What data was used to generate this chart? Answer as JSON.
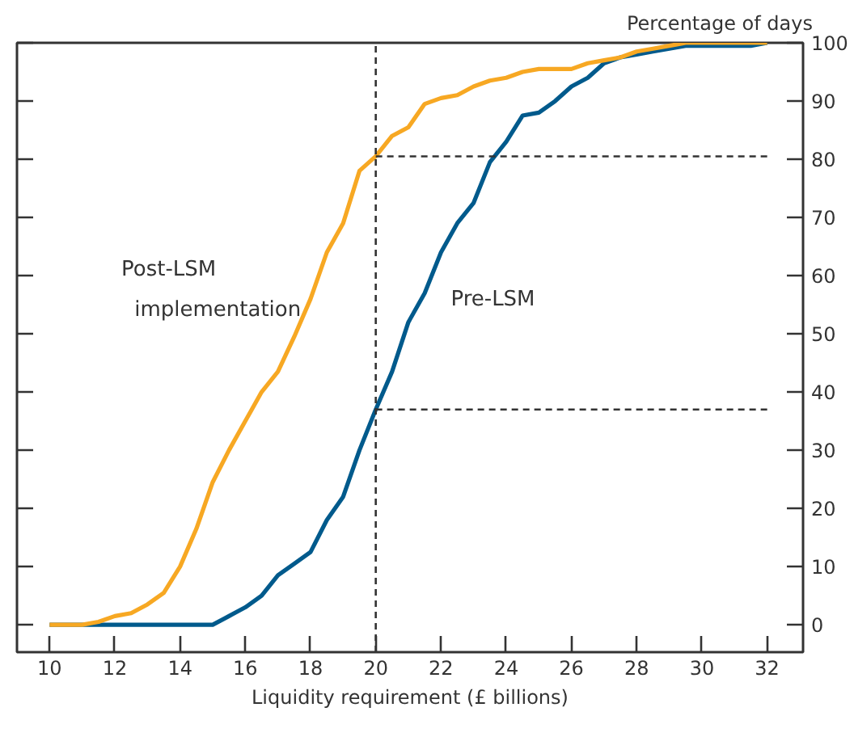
{
  "chart_data": {
    "type": "line",
    "xlabel": "Liquidity requirement (£ billions)",
    "ylabel": "Percentage of days",
    "x": [
      10,
      10.5,
      11,
      11.5,
      12,
      12.5,
      13,
      13.5,
      14,
      14.5,
      15,
      15.5,
      16,
      16.5,
      17,
      17.5,
      18,
      18.5,
      19,
      19.5,
      20,
      20.5,
      21,
      21.5,
      22,
      22.5,
      23,
      23.5,
      24,
      24.5,
      25,
      25.5,
      26,
      26.5,
      27,
      27.5,
      28,
      28.5,
      29,
      29.5,
      30,
      30.5,
      31,
      31.5,
      32
    ],
    "series": [
      {
        "name": "Post-LSM implementation",
        "color": "#f7a823",
        "values": [
          0,
          0,
          0,
          0.5,
          1.5,
          2,
          3.5,
          5.5,
          10,
          16.5,
          24.5,
          30,
          35,
          40,
          43.5,
          49.5,
          56,
          64,
          69,
          78,
          80.5,
          84,
          85.5,
          89.5,
          90.5,
          91,
          92.5,
          93.5,
          94,
          95,
          95.5,
          95.5,
          95.5,
          96.5,
          97,
          97.5,
          98.5,
          99,
          99.5,
          100,
          100,
          100,
          100,
          100,
          100
        ]
      },
      {
        "name": "Pre-LSM",
        "color": "#005a8c",
        "values": [
          0,
          0,
          0,
          0,
          0,
          0,
          0,
          0,
          0,
          0,
          0,
          1.5,
          3,
          5,
          8.5,
          10.5,
          12.5,
          18,
          22,
          30,
          37,
          43.5,
          52,
          57,
          64,
          69,
          72.5,
          79.5,
          83,
          87.5,
          88,
          90,
          92.5,
          94,
          96.5,
          97.5,
          98,
          98.5,
          99,
          99.5,
          99.5,
          99.5,
          99.5,
          99.5,
          100
        ]
      }
    ],
    "xlim": [
      9,
      33.1
    ],
    "ylim": [
      -4.7,
      100
    ],
    "xticks": [
      10,
      12,
      14,
      16,
      18,
      20,
      22,
      24,
      26,
      28,
      30,
      32
    ],
    "yticks": [
      0,
      10,
      20,
      30,
      40,
      50,
      60,
      70,
      80,
      90,
      100
    ],
    "ref_lines": [
      {
        "axis": "x",
        "value": 20,
        "color": "#333333",
        "line_style": "dashed"
      },
      {
        "axis": "y",
        "value": 80.5,
        "color": "#333333",
        "line_style": "dashed"
      },
      {
        "axis": "y",
        "value": 37,
        "color": "#333333",
        "line_style": "dashed"
      }
    ],
    "grid": false,
    "marker": "none",
    "line_style": "solid"
  }
}
